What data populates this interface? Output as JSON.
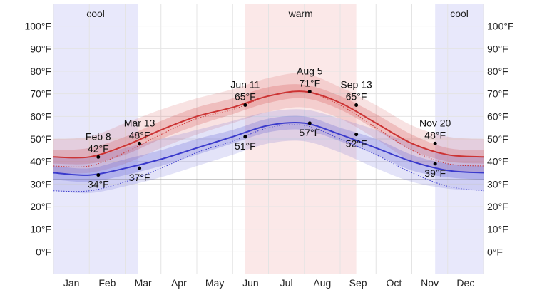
{
  "chart_data": {
    "type": "area",
    "x_unit": "month",
    "categories": [
      "Jan",
      "Feb",
      "Mar",
      "Apr",
      "May",
      "Jun",
      "Jul",
      "Aug",
      "Sep",
      "Oct",
      "Nov",
      "Dec"
    ],
    "ylim": [
      -10,
      110
    ],
    "y_ticks": [
      0,
      10,
      20,
      30,
      40,
      50,
      60,
      70,
      80,
      90,
      100
    ],
    "tick_suffix": "°F",
    "freezing_line": 32,
    "grid": true,
    "seasons": [
      {
        "label": "cool",
        "start": 0,
        "end": 2.35,
        "color": "#e8e8fb"
      },
      {
        "label": "warm",
        "start": 5.35,
        "end": 8.45,
        "color": "#fbe8e8"
      },
      {
        "label": "cool",
        "start": 10.65,
        "end": 12,
        "color": "#e8e8fb"
      }
    ],
    "x": [
      0,
      1,
      2,
      3,
      4,
      5,
      6,
      7,
      8,
      9,
      10,
      11,
      12
    ],
    "series": [
      {
        "role": "high",
        "color": "#cc3333",
        "values": [
          42,
          42,
          47,
          54,
          60,
          64,
          69,
          71,
          66,
          57,
          48,
          43,
          42
        ],
        "band_inner": [
          [
            39,
            45
          ],
          [
            39,
            46
          ],
          [
            43,
            51
          ],
          [
            50,
            58
          ],
          [
            56,
            64
          ],
          [
            61,
            68
          ],
          [
            66,
            73
          ],
          [
            68,
            74
          ],
          [
            63,
            69
          ],
          [
            54,
            61
          ],
          [
            45,
            52
          ],
          [
            40,
            46
          ],
          [
            39,
            45
          ]
        ],
        "band_outer": [
          [
            35,
            50
          ],
          [
            35,
            51
          ],
          [
            39,
            57
          ],
          [
            46,
            63
          ],
          [
            52,
            68
          ],
          [
            57,
            72
          ],
          [
            62,
            77
          ],
          [
            64,
            79
          ],
          [
            59,
            73
          ],
          [
            50,
            65
          ],
          [
            40,
            56
          ],
          [
            36,
            51
          ],
          [
            35,
            50
          ]
        ],
        "perceived": [
          38,
          38,
          44,
          52,
          59,
          63,
          69,
          71,
          65,
          55,
          45,
          39,
          38
        ]
      },
      {
        "role": "low",
        "color": "#3a3acc",
        "values": [
          35,
          34,
          37,
          41,
          46,
          51,
          56,
          57,
          52,
          46,
          40,
          36,
          35
        ],
        "band_inner": [
          [
            32,
            38
          ],
          [
            31,
            37
          ],
          [
            34,
            41
          ],
          [
            38,
            45
          ],
          [
            43,
            50
          ],
          [
            48,
            54
          ],
          [
            53,
            59
          ],
          [
            54,
            60
          ],
          [
            49,
            55
          ],
          [
            43,
            50
          ],
          [
            36,
            43
          ],
          [
            33,
            39
          ],
          [
            32,
            38
          ]
        ],
        "band_outer": [
          [
            27,
            42
          ],
          [
            26,
            42
          ],
          [
            29,
            46
          ],
          [
            33,
            50
          ],
          [
            38,
            54
          ],
          [
            43,
            58
          ],
          [
            48,
            62
          ],
          [
            49,
            63
          ],
          [
            44,
            59
          ],
          [
            37,
            54
          ],
          [
            31,
            48
          ],
          [
            28,
            43
          ],
          [
            27,
            42
          ]
        ],
        "perceived": [
          27,
          27,
          31,
          37,
          44,
          49,
          55,
          56,
          50,
          43,
          35,
          29,
          27
        ]
      }
    ],
    "annotations": [
      {
        "date": "Feb 8",
        "temp": "42°F",
        "x": 1.25,
        "y": 42,
        "pos": "above"
      },
      {
        "date": "",
        "temp": "34°F",
        "x": 1.25,
        "y": 34,
        "pos": "below"
      },
      {
        "date": "Mar 13",
        "temp": "48°F",
        "x": 2.4,
        "y": 48,
        "pos": "above"
      },
      {
        "date": "",
        "temp": "37°F",
        "x": 2.4,
        "y": 37,
        "pos": "below"
      },
      {
        "date": "Jun 11",
        "temp": "65°F",
        "x": 5.35,
        "y": 65,
        "pos": "above"
      },
      {
        "date": "",
        "temp": "51°F",
        "x": 5.35,
        "y": 51,
        "pos": "below"
      },
      {
        "date": "Aug 5",
        "temp": "71°F",
        "x": 7.15,
        "y": 71,
        "pos": "above"
      },
      {
        "date": "",
        "temp": "57°F",
        "x": 7.15,
        "y": 57,
        "pos": "below"
      },
      {
        "date": "Sep 13",
        "temp": "65°F",
        "x": 8.45,
        "y": 65,
        "pos": "above"
      },
      {
        "date": "",
        "temp": "52°F",
        "x": 8.45,
        "y": 52,
        "pos": "below"
      },
      {
        "date": "Nov 20",
        "temp": "48°F",
        "x": 10.65,
        "y": 48,
        "pos": "above"
      },
      {
        "date": "",
        "temp": "39°F",
        "x": 10.65,
        "y": 39,
        "pos": "below"
      }
    ]
  }
}
